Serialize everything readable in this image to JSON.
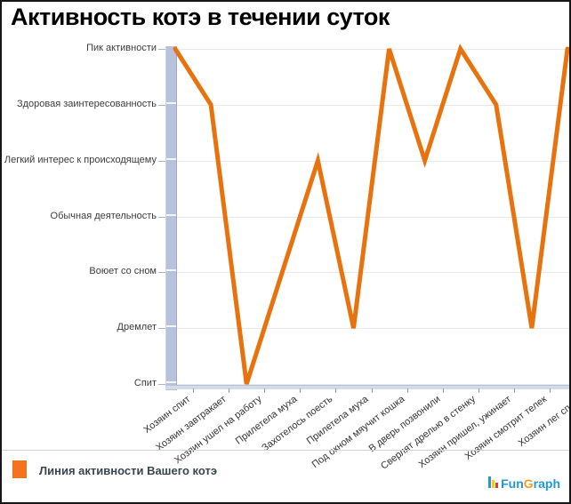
{
  "title": "Активность котэ в течении суток",
  "legend": {
    "label": "Линия активности Вашего котэ",
    "swatch_color": "#f4731c"
  },
  "logo": {
    "part_fun": "Fun",
    "part_g": "G",
    "part_raph": "raph",
    "blue": "#2299d4",
    "orange_g": "#f0a01e",
    "bar_colors": [
      "#2299d4",
      "#ffcc00",
      "#e03c31"
    ]
  },
  "chart_data": {
    "type": "line",
    "title": "Активность котэ в течении суток",
    "categories": [
      "Хозяин спит",
      "Хозяин завтракает",
      "Хозяин ушел на работу",
      "Прилетела муха",
      "Захотелось поесть",
      "Прилетела муха",
      "Под окном мяучит кошка",
      "В дверь позвонили",
      "Сверлят дрелью в стенку",
      "Хозяин пришел, ужинает",
      "Хозяин смотрит телек",
      "Хозяин лег спать"
    ],
    "values": [
      6,
      5,
      0,
      2,
      4,
      1,
      6,
      4,
      6,
      5,
      1,
      6
    ],
    "y_tick_labels_top_to_bottom": [
      "Пик активности",
      "Здоровая заинтересованность",
      "Легкий интерес к происходящему",
      "Обычная деятельность",
      "Воюет со сном",
      "Дремлет",
      "Спит"
    ],
    "ylim": [
      0,
      6
    ],
    "xlabel": "",
    "ylabel": "",
    "grid": true,
    "line_color": "#e8730e",
    "line_width": 5,
    "legend_position": "bottom-left",
    "legend_entries": [
      "Линия активности Вашего котэ"
    ]
  }
}
